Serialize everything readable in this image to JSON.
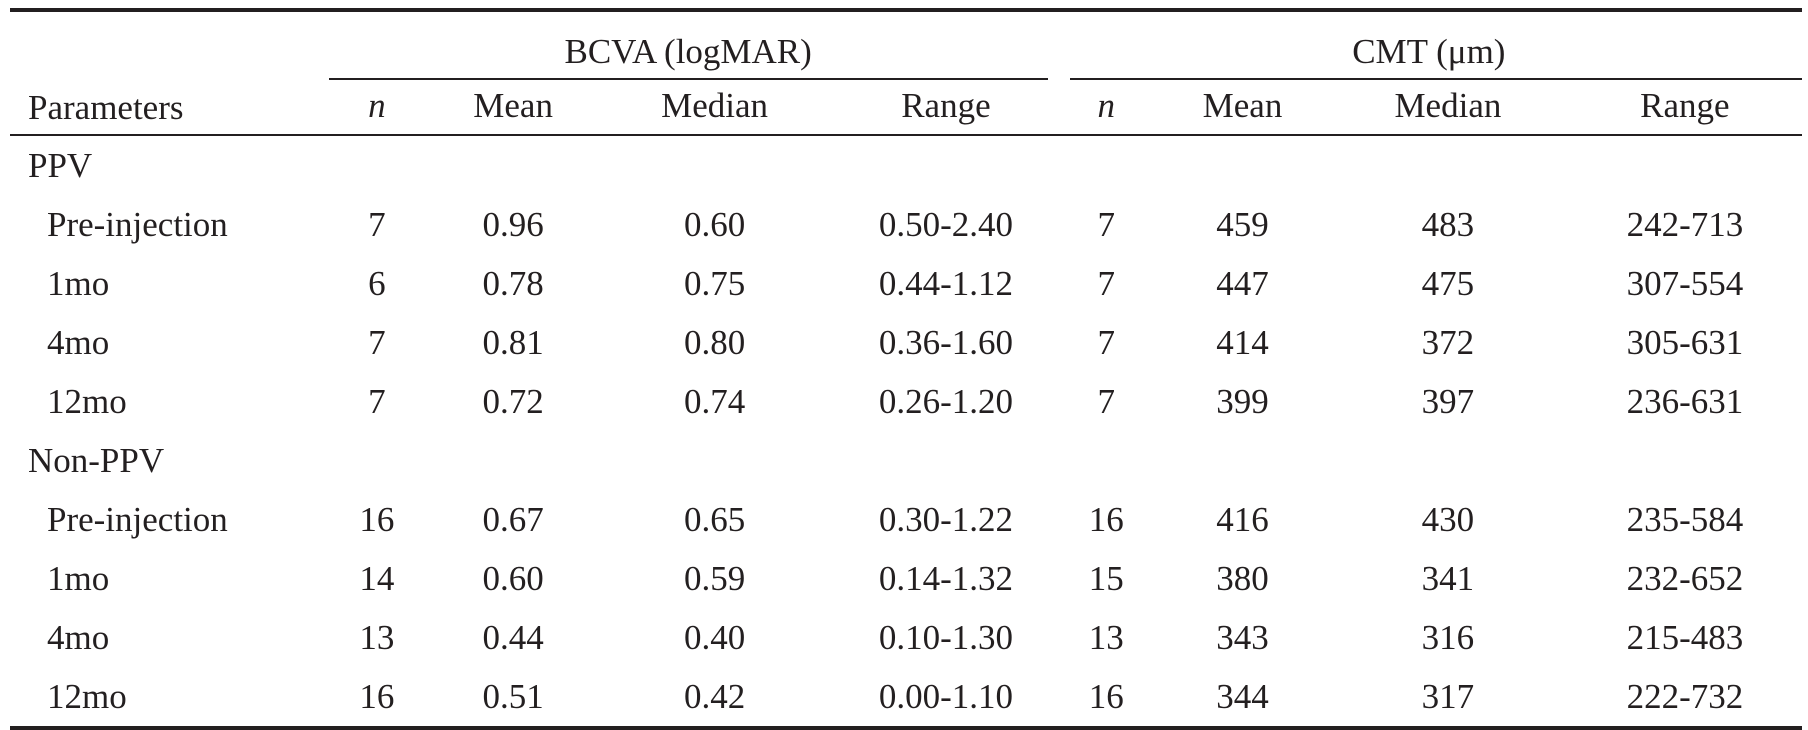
{
  "table": {
    "param_header": "Parameters",
    "groups": [
      {
        "title": "BCVA (logMAR)"
      },
      {
        "title": "CMT (μm)"
      }
    ],
    "sub_headers": {
      "bcva": [
        "n",
        "Mean",
        "Median",
        "Range"
      ],
      "cmt": [
        "n",
        "Mean",
        "Median",
        "Range"
      ]
    },
    "sections": [
      {
        "name": "PPV",
        "rows": [
          {
            "label": "Pre-injection",
            "bcva": [
              "7",
              "0.96",
              "0.60",
              "0.50-2.40"
            ],
            "cmt": [
              "7",
              "459",
              "483",
              "242-713"
            ]
          },
          {
            "label": "1mo",
            "bcva": [
              "6",
              "0.78",
              "0.75",
              "0.44-1.12"
            ],
            "cmt": [
              "7",
              "447",
              "475",
              "307-554"
            ]
          },
          {
            "label": "4mo",
            "bcva": [
              "7",
              "0.81",
              "0.80",
              "0.36-1.60"
            ],
            "cmt": [
              "7",
              "414",
              "372",
              "305-631"
            ]
          },
          {
            "label": "12mo",
            "bcva": [
              "7",
              "0.72",
              "0.74",
              "0.26-1.20"
            ],
            "cmt": [
              "7",
              "399",
              "397",
              "236-631"
            ]
          }
        ]
      },
      {
        "name": "Non-PPV",
        "rows": [
          {
            "label": "Pre-injection",
            "bcva": [
              "16",
              "0.67",
              "0.65",
              "0.30-1.22"
            ],
            "cmt": [
              "16",
              "416",
              "430",
              "235-584"
            ]
          },
          {
            "label": "1mo",
            "bcva": [
              "14",
              "0.60",
              "0.59",
              "0.14-1.32"
            ],
            "cmt": [
              "15",
              "380",
              "341",
              "232-652"
            ]
          },
          {
            "label": "4mo",
            "bcva": [
              "13",
              "0.44",
              "0.40",
              "0.10-1.30"
            ],
            "cmt": [
              "13",
              "343",
              "316",
              "215-483"
            ]
          },
          {
            "label": "12mo",
            "bcva": [
              "16",
              "0.51",
              "0.42",
              "0.00-1.10"
            ],
            "cmt": [
              "16",
              "344",
              "317",
              "222-732"
            ]
          }
        ]
      }
    ]
  }
}
